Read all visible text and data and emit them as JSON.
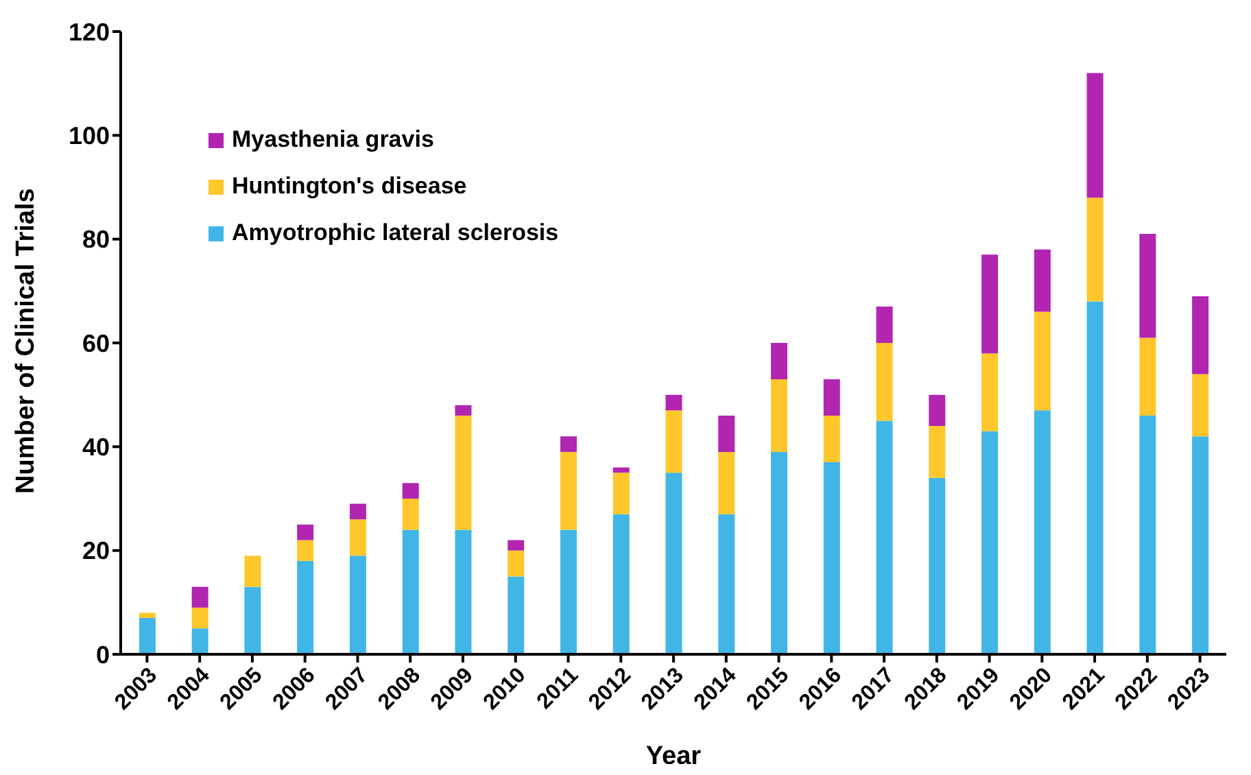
{
  "chart_data": {
    "type": "bar",
    "stacked": true,
    "xlabel": "Year",
    "ylabel": "Number of Clinical Trials",
    "categories": [
      "2003",
      "2004",
      "2005",
      "2006",
      "2007",
      "2008",
      "2009",
      "2010",
      "2011",
      "2012",
      "2013",
      "2014",
      "2015",
      "2016",
      "2017",
      "2018",
      "2019",
      "2020",
      "2021",
      "2022",
      "2023"
    ],
    "series": [
      {
        "name": "Amyotrophic lateral sclerosis",
        "color": "#41b6e6",
        "values": [
          7,
          5,
          13,
          18,
          19,
          24,
          24,
          15,
          24,
          27,
          35,
          27,
          39,
          37,
          45,
          34,
          43,
          47,
          68,
          46,
          42
        ]
      },
      {
        "name": "Huntington's disease",
        "color": "#ffc72c",
        "values": [
          1,
          4,
          6,
          4,
          7,
          6,
          22,
          5,
          15,
          8,
          12,
          12,
          14,
          9,
          15,
          10,
          15,
          19,
          20,
          15,
          12
        ]
      },
      {
        "name": "Myasthenia gravis",
        "color": "#b125b1",
        "values": [
          0,
          4,
          0,
          3,
          3,
          3,
          2,
          2,
          3,
          1,
          3,
          7,
          7,
          7,
          7,
          6,
          19,
          12,
          24,
          20,
          15
        ]
      }
    ],
    "ylim": [
      0,
      120
    ],
    "yticks": [
      0,
      20,
      40,
      60,
      80,
      100,
      120
    ],
    "grid": false,
    "legend": "top left"
  }
}
